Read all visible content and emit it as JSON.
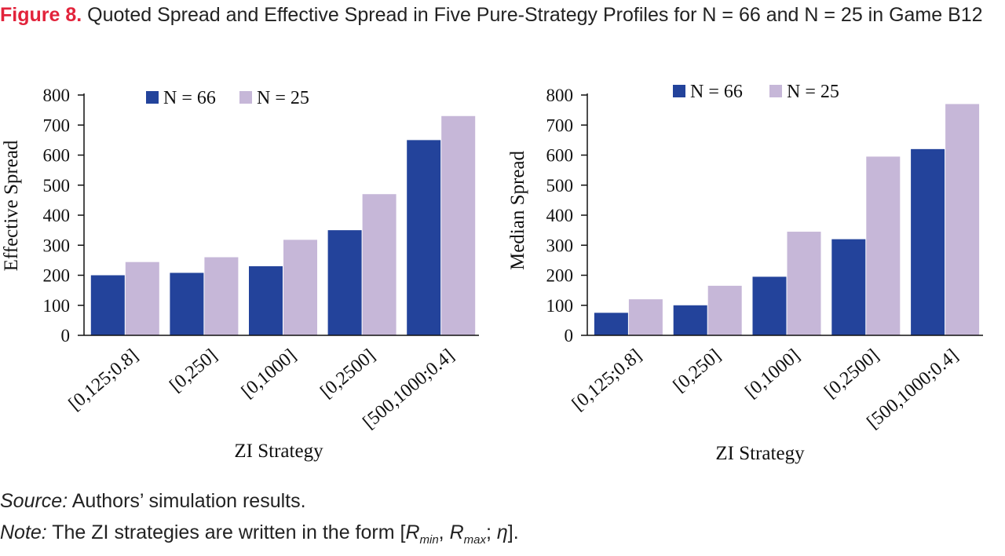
{
  "caption": {
    "label": "Figure 8.",
    "text": " Quoted Spread and Effective Spread in Five Pure-Strategy Profiles for N = 66 and N = 25 in Game B12",
    "label_color": "#e2233b"
  },
  "colors": {
    "n66": "#23439b",
    "n25": "#c6b7d8"
  },
  "chart_data": [
    {
      "type": "bar",
      "title": "",
      "xlabel": "ZI Strategy",
      "ylabel": "Effective Spread",
      "ylim": [
        0,
        800
      ],
      "yticks": [
        0,
        100,
        200,
        300,
        400,
        500,
        600,
        700,
        800
      ],
      "legend_position": "top-center",
      "categories": [
        "[0,125;0.8]",
        "[0,250]",
        "[0,1000]",
        "[0,2500]",
        "[500,1000;0.4]"
      ],
      "series": [
        {
          "name": "N = 66",
          "color": "#23439b",
          "values": [
            200,
            208,
            230,
            350,
            650
          ]
        },
        {
          "name": "N = 25",
          "color": "#c6b7d8",
          "values": [
            244,
            260,
            318,
            470,
            730
          ]
        }
      ]
    },
    {
      "type": "bar",
      "title": "",
      "xlabel": "ZI Strategy",
      "ylabel": "Median Spread",
      "ylim": [
        0,
        800
      ],
      "yticks": [
        0,
        100,
        200,
        300,
        400,
        500,
        600,
        700,
        800
      ],
      "legend_position": "top-center",
      "categories": [
        "[0,125;0.8]",
        "[0,250]",
        "[0,1000]",
        "[0,2500]",
        "[500,1000;0.4]"
      ],
      "series": [
        {
          "name": "N = 66",
          "color": "#23439b",
          "values": [
            75,
            100,
            195,
            320,
            620
          ]
        },
        {
          "name": "N = 25",
          "color": "#c6b7d8",
          "values": [
            120,
            165,
            345,
            595,
            770
          ]
        }
      ]
    }
  ],
  "footer": {
    "source_label": "Source:",
    "source_text": " Authors’ simulation results.",
    "note_label": "Note:",
    "note_text": " The ZI strategies are written in the form [",
    "note_r": "R",
    "note_min": "min",
    "note_comma": ", ",
    "note_max": "max",
    "note_semicolon": "; ",
    "note_eta": "η",
    "note_end": "]."
  }
}
